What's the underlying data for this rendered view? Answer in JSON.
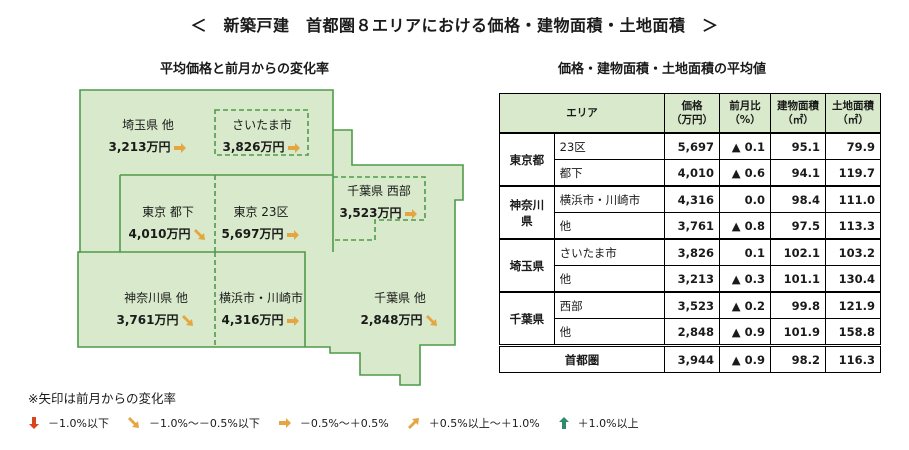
{
  "title": "＜　新築戸建　首都圏８エリアにおける価格・建物面積・土地面積　＞",
  "map_title": "平均価格と前月からの変化率",
  "table_title": "価格・建物面積・土地面積の平均値",
  "colors": {
    "map_fill": "#d8eacb",
    "map_stroke": "#4f9a4a",
    "header_fill": "#d8eacb"
  },
  "regions": [
    {
      "name": "埼玉県 他",
      "price": "3,213万円",
      "trend": "flat",
      "icon": "right-arrow-icon"
    },
    {
      "name": "さいたま市",
      "price": "3,826万円",
      "trend": "flat",
      "icon": "right-arrow-icon"
    },
    {
      "name": "東京 都下",
      "price": "4,010万円",
      "trend": "down-small",
      "icon": "down-right-arrow-icon"
    },
    {
      "name": "東京 23区",
      "price": "5,697万円",
      "trend": "flat",
      "icon": "right-arrow-icon"
    },
    {
      "name": "千葉県 西部",
      "price": "3,523万円",
      "trend": "flat",
      "icon": "right-arrow-icon"
    },
    {
      "name": "神奈川県 他",
      "price": "3,761万円",
      "trend": "down-small",
      "icon": "down-right-arrow-icon"
    },
    {
      "name": "横浜市・川崎市",
      "price": "4,316万円",
      "trend": "flat",
      "icon": "right-arrow-icon"
    },
    {
      "name": "千葉県 他",
      "price": "2,848万円",
      "trend": "down-small",
      "icon": "down-right-arrow-icon"
    }
  ],
  "table": {
    "headers": {
      "area": "エリア",
      "price": "価格",
      "price_unit": "（万円）",
      "change": "前月比",
      "change_unit": "（%）",
      "building": "建物面積",
      "building_unit": "（㎡）",
      "land": "土地面積",
      "land_unit": "（㎡）"
    },
    "groups": [
      {
        "name": "東京都",
        "rows": [
          {
            "sub": "23区",
            "price": "5,697",
            "change": "▲ 0.1",
            "building": "95.1",
            "land": "79.9"
          },
          {
            "sub": "都下",
            "price": "4,010",
            "change": "▲ 0.6",
            "building": "94.1",
            "land": "119.7"
          }
        ]
      },
      {
        "name": "神奈川県",
        "rows": [
          {
            "sub": "横浜市・川崎市",
            "price": "4,316",
            "change": "0.0",
            "building": "98.4",
            "land": "111.0"
          },
          {
            "sub": "他",
            "price": "3,761",
            "change": "▲ 0.8",
            "building": "97.5",
            "land": "113.3"
          }
        ]
      },
      {
        "name": "埼玉県",
        "rows": [
          {
            "sub": "さいたま市",
            "price": "3,826",
            "change": "0.1",
            "building": "102.1",
            "land": "103.2"
          },
          {
            "sub": "他",
            "price": "3,213",
            "change": "▲ 0.3",
            "building": "101.1",
            "land": "130.4"
          }
        ]
      },
      {
        "name": "千葉県",
        "rows": [
          {
            "sub": "西部",
            "price": "3,523",
            "change": "▲ 0.2",
            "building": "99.8",
            "land": "121.9"
          },
          {
            "sub": "他",
            "price": "2,848",
            "change": "▲ 0.9",
            "building": "101.9",
            "land": "158.8"
          }
        ]
      }
    ],
    "total": {
      "name": "首都圏",
      "price": "3,944",
      "change": "▲ 0.9",
      "building": "98.2",
      "land": "116.3"
    }
  },
  "note": "※矢印は前月からの変化率",
  "legend": [
    {
      "label": "－1.0%以下",
      "icon": "down-arrow-icon",
      "color": "#d9461e"
    },
    {
      "label": "－1.0%～－0.5%以下",
      "icon": "down-right-arrow-icon",
      "color": "#e3a640"
    },
    {
      "label": "－0.5%～＋0.5%",
      "icon": "right-arrow-icon",
      "color": "#e3a640"
    },
    {
      "label": "＋0.5%以上～＋1.0%",
      "icon": "up-right-arrow-icon",
      "color": "#e3a640"
    },
    {
      "label": "＋1.0%以上",
      "icon": "up-arrow-icon",
      "color": "#2e8b6e"
    }
  ]
}
